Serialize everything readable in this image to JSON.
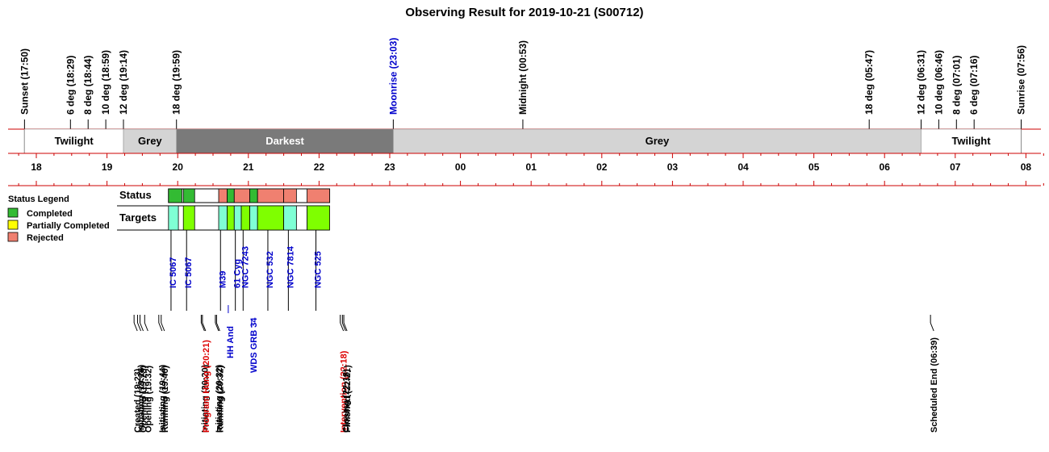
{
  "chart_data": {
    "type": "timeline",
    "title": "Observing Result for 2019-10-21 (S00712)",
    "twilight_markers": [
      {
        "label": "Sunset (17:50)",
        "hour": 17.833,
        "color": "#000000"
      },
      {
        "label": "6 deg (18:29)",
        "hour": 18.483,
        "color": "#000000"
      },
      {
        "label": "8 deg (18:44)",
        "hour": 18.733,
        "color": "#000000"
      },
      {
        "label": "10 deg (18:59)",
        "hour": 18.983,
        "color": "#000000"
      },
      {
        "label": "12 deg (19:14)",
        "hour": 19.233,
        "color": "#000000"
      },
      {
        "label": "18 deg (19:59)",
        "hour": 19.983,
        "color": "#000000"
      },
      {
        "label": "Moonrise (23:03)",
        "hour": 23.05,
        "color": "#0000cc"
      },
      {
        "label": "Midnight (00:53)",
        "hour": 24.883,
        "color": "#000000"
      },
      {
        "label": "18 deg (05:47)",
        "hour": 29.783,
        "color": "#000000"
      },
      {
        "label": "12 deg (06:31)",
        "hour": 30.517,
        "color": "#000000"
      },
      {
        "label": "10 deg (06:46)",
        "hour": 30.767,
        "color": "#000000"
      },
      {
        "label": "8 deg (07:01)",
        "hour": 31.017,
        "color": "#000000"
      },
      {
        "label": "6 deg (07:16)",
        "hour": 31.267,
        "color": "#000000"
      },
      {
        "label": "Sunrise (07:56)",
        "hour": 31.933,
        "color": "#000000"
      }
    ],
    "sky_bands": [
      {
        "label": "Twilight",
        "start": 17.833,
        "end": 19.233,
        "fill": "#ffffff",
        "text_color": "#000000"
      },
      {
        "label": "Grey",
        "start": 19.233,
        "end": 19.983,
        "fill": "#d4d4d4",
        "text_color": "#000000"
      },
      {
        "label": "Darkest",
        "start": 19.983,
        "end": 23.05,
        "fill": "#7a7a7a",
        "text_color": "#ffffff"
      },
      {
        "label": "Grey",
        "start": 23.05,
        "end": 30.517,
        "fill": "#d4d4d4",
        "text_color": "#000000"
      },
      {
        "label": "Twilight",
        "start": 30.517,
        "end": 31.933,
        "fill": "#ffffff",
        "text_color": "#000000"
      }
    ],
    "hour_ticks": [
      {
        "hour": 18,
        "label": "18"
      },
      {
        "hour": 19,
        "label": "19"
      },
      {
        "hour": 20,
        "label": "20"
      },
      {
        "hour": 21,
        "label": "21"
      },
      {
        "hour": 22,
        "label": "22"
      },
      {
        "hour": 23,
        "label": "23"
      },
      {
        "hour": 24,
        "label": "00"
      },
      {
        "hour": 25,
        "label": "01"
      },
      {
        "hour": 26,
        "label": "02"
      },
      {
        "hour": 27,
        "label": "03"
      },
      {
        "hour": 28,
        "label": "04"
      },
      {
        "hour": 29,
        "label": "05"
      },
      {
        "hour": 30,
        "label": "06"
      },
      {
        "hour": 31,
        "label": "07"
      },
      {
        "hour": 32,
        "label": "08"
      }
    ],
    "xlim": [
      17.6,
      32.3
    ],
    "status_row_label": "Status",
    "targets_row_label": "Targets",
    "status_blocks": [
      {
        "start": 19.87,
        "end": 20.06,
        "status": "Completed"
      },
      {
        "start": 20.08,
        "end": 20.24,
        "status": "Completed"
      },
      {
        "start": 20.58,
        "end": 20.7,
        "status": "Rejected"
      },
      {
        "start": 20.7,
        "end": 20.8,
        "status": "Completed"
      },
      {
        "start": 20.8,
        "end": 21.02,
        "status": "Rejected"
      },
      {
        "start": 21.02,
        "end": 21.13,
        "status": "Completed"
      },
      {
        "start": 21.13,
        "end": 21.5,
        "status": "Rejected"
      },
      {
        "start": 21.5,
        "end": 21.68,
        "status": "Rejected"
      },
      {
        "start": 21.83,
        "end": 22.15,
        "status": "Rejected"
      }
    ],
    "target_blocks": [
      {
        "start": 19.87,
        "end": 20.01,
        "fill": "#7fffd4"
      },
      {
        "start": 20.08,
        "end": 20.24,
        "fill": "#7fff00"
      },
      {
        "start": 20.58,
        "end": 20.7,
        "fill": "#7fffd4"
      },
      {
        "start": 20.7,
        "end": 20.8,
        "fill": "#7fff00"
      },
      {
        "start": 20.8,
        "end": 20.9,
        "fill": "#7fffd4"
      },
      {
        "start": 20.9,
        "end": 21.02,
        "fill": "#7fff00"
      },
      {
        "start": 21.02,
        "end": 21.13,
        "fill": "#7fffd4"
      },
      {
        "start": 21.13,
        "end": 21.5,
        "fill": "#7fff00"
      },
      {
        "start": 21.5,
        "end": 21.68,
        "fill": "#7fffd4"
      },
      {
        "start": 21.68,
        "end": 21.83,
        "fill": "#ffffff"
      },
      {
        "start": 21.83,
        "end": 22.15,
        "fill": "#7fff00"
      }
    ],
    "target_labels": [
      {
        "label": "IC 5067",
        "hour": 19.94,
        "stub": false
      },
      {
        "label": "IC 5067",
        "hour": 20.16,
        "stub": false
      },
      {
        "label": "M39",
        "hour": 20.64,
        "stub": false
      },
      {
        "label": "61 Cyg",
        "hour": 20.85,
        "stub": false
      },
      {
        "label": "NGC 7243",
        "hour": 20.96,
        "stub": false
      },
      {
        "label": "NGC 532",
        "hour": 21.31,
        "stub": false
      },
      {
        "label": "NGC 7814",
        "hour": 21.6,
        "stub": false
      },
      {
        "label": "NGC 525",
        "hour": 21.99,
        "stub": false
      },
      {
        "label": "HH And",
        "hour": 20.75,
        "stub": true
      },
      {
        "label": "WDS GRB 34",
        "hour": 21.08,
        "stub": true
      }
    ],
    "legend": {
      "title": "Status Legend",
      "items": [
        {
          "label": "Completed",
          "color": "#33bb33"
        },
        {
          "label": "Partially Completed",
          "color": "#ffff00"
        },
        {
          "label": "Rejected",
          "color": "#f08070"
        }
      ]
    },
    "events": [
      {
        "label": "Created (19:23)",
        "hour": 19.383,
        "color": "#000000"
      },
      {
        "label": "Initiating (19:26)",
        "hour": 19.433,
        "color": "#000000"
      },
      {
        "label": "Opening (19:28)",
        "hour": 19.467,
        "color": "#000000"
      },
      {
        "label": "Opening (19:32)",
        "hour": 19.533,
        "color": "#000000"
      },
      {
        "label": "Initiating (19:44)",
        "hour": 19.733,
        "color": "#000000"
      },
      {
        "label": "Running (19:46)",
        "hour": 19.767,
        "color": "#000000"
      },
      {
        "label": "Initiating (20:20)",
        "hour": 20.333,
        "color": "#000000"
      },
      {
        "label": "Program Hung (20:21)",
        "hour": 20.35,
        "color": "#dd0000"
      },
      {
        "label": "Initiating (20:32)",
        "hour": 20.533,
        "color": "#000000"
      },
      {
        "label": "Running (20:32)",
        "hour": 20.55,
        "color": "#000000"
      },
      {
        "label": "Intervention (22:18)",
        "hour": 22.3,
        "color": "#dd0000"
      },
      {
        "label": "Closing (22:18)",
        "hour": 22.33,
        "color": "#000000"
      },
      {
        "label": "Finished (22:21)",
        "hour": 22.35,
        "color": "#000000"
      },
      {
        "label": "Scheduled End (06:39)",
        "hour": 30.65,
        "color": "#000000"
      }
    ]
  }
}
